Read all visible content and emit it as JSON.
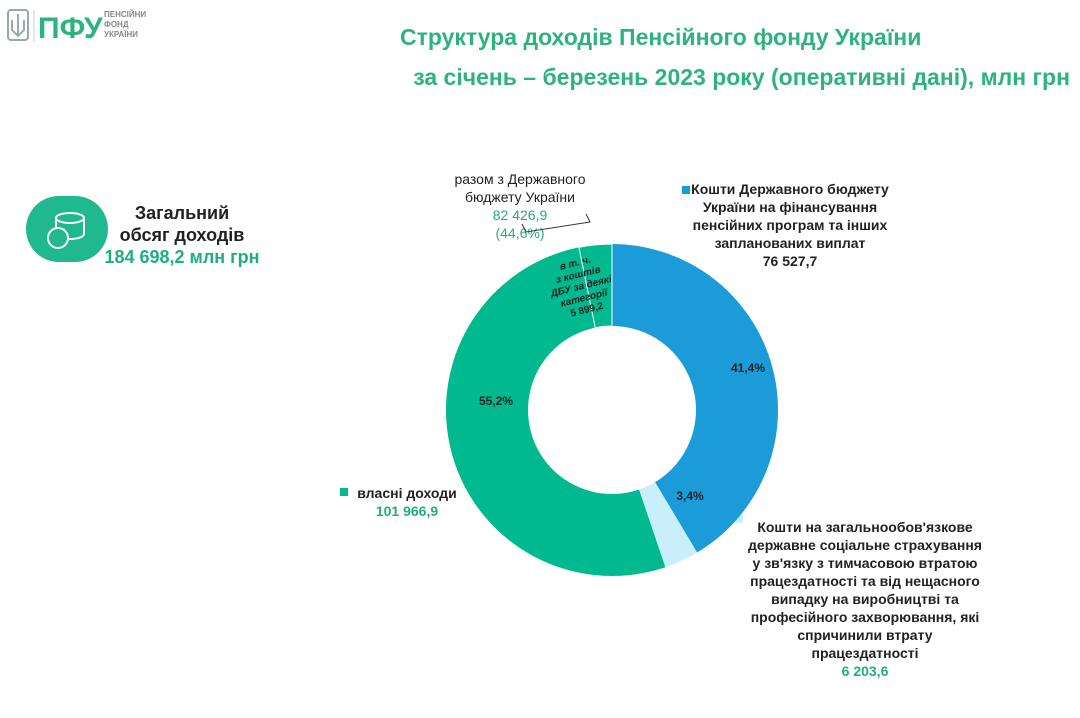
{
  "header": {
    "logo": "ПФУ",
    "logo_lines": [
      "ПЕНСІЙНИЙ",
      "ФОНД",
      "УКРАЇНИ"
    ]
  },
  "chart_data": {
    "type": "donut",
    "title": [
      "Структура доходів Пенсійного фонду України",
      "за січень – березень 2023 року (оперативні дані), млн грн"
    ],
    "total": {
      "label": [
        "Загальний",
        "обсяг доходів"
      ],
      "value": 184698.2,
      "value_label": "184 698,2 млн грн"
    },
    "categories": [
      "Кошти Державного бюджету України на фінансування пенсійних програм та інших запланованих виплат",
      "Кошти на загальнообов'язкове державне соціальне страхування у зв'язку з тимчасовою втратою працездатності та від нещасного випадку на виробництві та професійного захворювання, які спричинили втрату працездатності",
      "власні доходи"
    ],
    "values": [
      76527.7,
      6203.6,
      101966.9
    ],
    "value_labels": [
      "76 527,7",
      "6 203,6",
      "101 966,9"
    ],
    "colors": [
      "#1b9bd8",
      "#c9effb",
      "#00b98e"
    ],
    "shares": [
      41.4,
      3.4,
      55.2
    ],
    "share_labels": [
      "41,4%",
      "3,4%",
      "55,2%"
    ],
    "state_budget_total": {
      "label": "разом з Державного бюджету України",
      "value": 82426.9,
      "value_label": "82 426,9",
      "share": 44.6,
      "share_label": "(44,6%)"
    },
    "sub_slice": {
      "label": [
        "в т. ч.",
        "з коштів",
        "ДБУ за деякі",
        "категорії"
      ],
      "value": 5899.2,
      "value_label": "5 899,2"
    }
  }
}
